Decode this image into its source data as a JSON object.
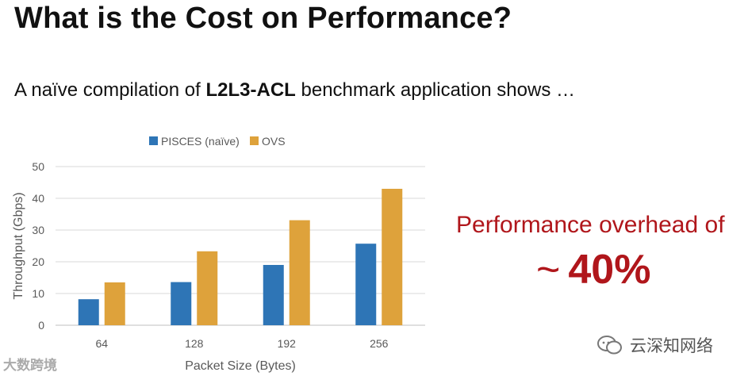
{
  "slide": {
    "title": "What is the Cost on Performance?",
    "subtitle_pre": "A naïve compilation of ",
    "subtitle_bold": "L2L3-ACL",
    "subtitle_post": " benchmark application shows …",
    "callout_line1": "Performance overhead of",
    "callout_tilde": "~",
    "callout_value": "40%",
    "watermark_right": "云深知网络",
    "watermark_left": "大数跨境"
  },
  "chart_data": {
    "type": "bar",
    "categories": [
      "64",
      "128",
      "192",
      "256"
    ],
    "series": [
      {
        "name": "PISCES (naïve)",
        "color": "#2e75b6",
        "values": [
          8.2,
          13.6,
          19.0,
          25.7
        ]
      },
      {
        "name": "OVS",
        "color": "#dea23b",
        "values": [
          13.5,
          23.3,
          33.1,
          43.0
        ]
      }
    ],
    "title": "",
    "xlabel": "Packet Size (Bytes)",
    "ylabel": "Throughput (Gbps)",
    "ylim": [
      0,
      50
    ],
    "yticks": [
      "0",
      "10",
      "20",
      "30",
      "40",
      "50"
    ],
    "grid": true,
    "legend": "top"
  }
}
